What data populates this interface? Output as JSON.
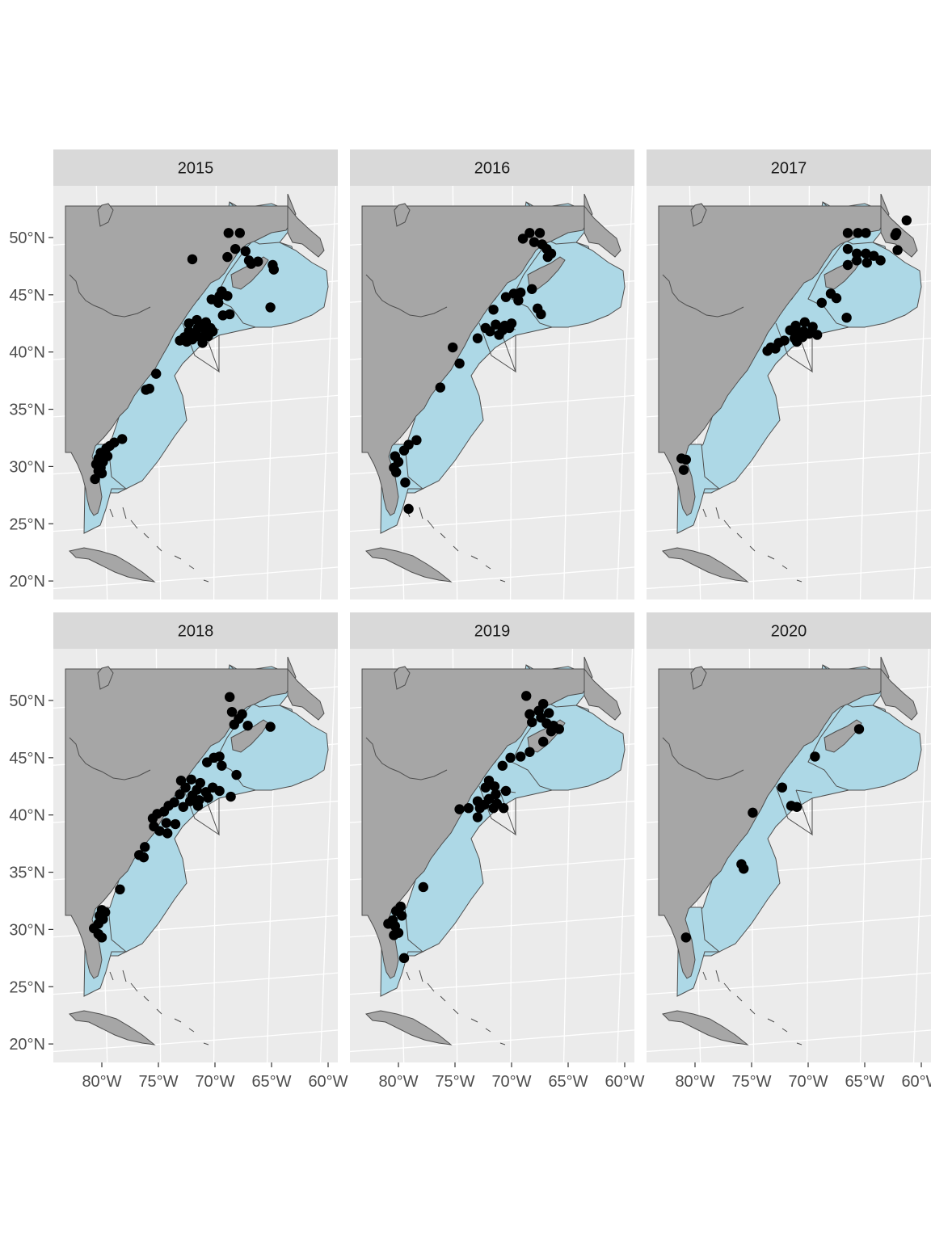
{
  "facets": [
    {
      "label": "2015"
    },
    {
      "label": "2016"
    },
    {
      "label": "2017"
    },
    {
      "label": "2018"
    },
    {
      "label": "2019"
    },
    {
      "label": "2020"
    }
  ],
  "axes": {
    "lat_ticks": [
      {
        "value": 50,
        "label": "50°N"
      },
      {
        "value": 45,
        "label": "45°N"
      },
      {
        "value": 40,
        "label": "40°N"
      },
      {
        "value": 35,
        "label": "35°N"
      },
      {
        "value": 30,
        "label": "30°N"
      },
      {
        "value": 25,
        "label": "25°N"
      },
      {
        "value": 20,
        "label": "20°N"
      }
    ],
    "lon_ticks": [
      {
        "value": -80,
        "label": "80°W"
      },
      {
        "value": -75,
        "label": "75°W"
      },
      {
        "value": -70,
        "label": "70°W"
      },
      {
        "value": -65,
        "label": "65°W"
      },
      {
        "value": -60,
        "label": "60°W"
      }
    ]
  },
  "colors": {
    "panel_bg": "#ebebeb",
    "strip_bg": "#d9d9d9",
    "grid": "#ffffff",
    "land": "#a6a6a6",
    "water": "#add8e6",
    "outline": "#4d4d4d",
    "point": "#000000"
  },
  "chart_data": {
    "type": "scatter",
    "title": "",
    "xlabel": "",
    "ylabel": "",
    "xlim": [
      -84,
      -59
    ],
    "ylim": [
      19,
      54
    ],
    "series": [
      {
        "facet": "2015",
        "points": [
          [
            -72,
            48.1
          ],
          [
            -68.8,
            50.4
          ],
          [
            -67.8,
            50.4
          ],
          [
            -68.2,
            49.0
          ],
          [
            -67.3,
            48.8
          ],
          [
            -68.9,
            48.3
          ],
          [
            -67.0,
            48.0
          ],
          [
            -66.2,
            47.9
          ],
          [
            -64.9,
            47.6
          ],
          [
            -64.8,
            47.2
          ],
          [
            -66.8,
            47.7
          ],
          [
            -69.4,
            45.3
          ],
          [
            -69.6,
            44.9
          ],
          [
            -68.9,
            44.9
          ],
          [
            -70.3,
            44.6
          ],
          [
            -69.7,
            44.3
          ],
          [
            -68.7,
            43.3
          ],
          [
            -69.3,
            43.2
          ],
          [
            -65.1,
            43.9
          ],
          [
            -72.3,
            42.5
          ],
          [
            -71.6,
            42.8
          ],
          [
            -70.8,
            42.6
          ],
          [
            -70.4,
            42.1
          ],
          [
            -71.1,
            42.2
          ],
          [
            -72.3,
            41.8
          ],
          [
            -71.7,
            41.6
          ],
          [
            -72.0,
            41.1
          ],
          [
            -71.3,
            41.3
          ],
          [
            -70.6,
            41.4
          ],
          [
            -70.2,
            41.8
          ],
          [
            -70.8,
            41.8
          ],
          [
            -71.5,
            42.1
          ],
          [
            -72.7,
            41.3
          ],
          [
            -73.1,
            41.0
          ],
          [
            -72.5,
            40.9
          ],
          [
            -71.1,
            40.8
          ],
          [
            -75.2,
            38.1
          ],
          [
            -75.8,
            36.8
          ],
          [
            -76.1,
            36.7
          ],
          [
            -78.2,
            32.4
          ],
          [
            -78.9,
            32.1
          ],
          [
            -79.3,
            31.8
          ],
          [
            -79.6,
            31.6
          ],
          [
            -80.1,
            31.2
          ],
          [
            -79.5,
            30.9
          ],
          [
            -80.3,
            30.7
          ],
          [
            -79.9,
            30.4
          ],
          [
            -80.5,
            30.2
          ],
          [
            -80.1,
            29.9
          ],
          [
            -80.3,
            29.6
          ],
          [
            -80.0,
            29.4
          ],
          [
            -80.6,
            28.9
          ]
        ]
      },
      {
        "facet": "2016",
        "points": [
          [
            -68.4,
            50.4
          ],
          [
            -67.5,
            50.4
          ],
          [
            -69.0,
            49.9
          ],
          [
            -68.0,
            49.6
          ],
          [
            -67.3,
            49.4
          ],
          [
            -66.9,
            49.0
          ],
          [
            -66.5,
            48.6
          ],
          [
            -66.8,
            48.3
          ],
          [
            -69.8,
            45.1
          ],
          [
            -69.2,
            45.2
          ],
          [
            -68.2,
            45.5
          ],
          [
            -70.5,
            44.8
          ],
          [
            -69.4,
            44.5
          ],
          [
            -67.7,
            43.8
          ],
          [
            -67.4,
            43.3
          ],
          [
            -71.6,
            43.7
          ],
          [
            -72.3,
            42.1
          ],
          [
            -71.4,
            42.4
          ],
          [
            -70.6,
            42.3
          ],
          [
            -70.8,
            41.9
          ],
          [
            -71.9,
            41.8
          ],
          [
            -70.2,
            42.1
          ],
          [
            -71.1,
            41.5
          ],
          [
            -70.0,
            42.5
          ],
          [
            -73.0,
            41.2
          ],
          [
            -75.2,
            40.4
          ],
          [
            -74.6,
            39.0
          ],
          [
            -76.3,
            36.9
          ],
          [
            -78.4,
            32.3
          ],
          [
            -79.1,
            31.9
          ],
          [
            -79.5,
            31.4
          ],
          [
            -80.3,
            30.9
          ],
          [
            -80.0,
            30.4
          ],
          [
            -80.4,
            29.9
          ],
          [
            -80.2,
            29.5
          ],
          [
            -79.4,
            28.6
          ],
          [
            -79.1,
            26.3
          ]
        ]
      },
      {
        "facet": "2017",
        "points": [
          [
            -61.3,
            51.5
          ],
          [
            -62.2,
            50.4
          ],
          [
            -62.3,
            50.2
          ],
          [
            -66.5,
            50.4
          ],
          [
            -65.6,
            50.4
          ],
          [
            -64.9,
            50.4
          ],
          [
            -66.5,
            49.0
          ],
          [
            -65.7,
            48.6
          ],
          [
            -64.9,
            48.6
          ],
          [
            -64.2,
            48.4
          ],
          [
            -63.6,
            48.0
          ],
          [
            -65.7,
            48.0
          ],
          [
            -66.5,
            47.6
          ],
          [
            -64.8,
            47.8
          ],
          [
            -62.1,
            48.9
          ],
          [
            -68.0,
            45.1
          ],
          [
            -67.5,
            44.7
          ],
          [
            -68.8,
            44.3
          ],
          [
            -66.6,
            43.0
          ],
          [
            -70.3,
            42.6
          ],
          [
            -71.1,
            42.3
          ],
          [
            -69.6,
            42.2
          ],
          [
            -70.4,
            41.8
          ],
          [
            -69.9,
            41.6
          ],
          [
            -70.9,
            41.7
          ],
          [
            -71.6,
            41.9
          ],
          [
            -71.2,
            41.2
          ],
          [
            -70.5,
            41.3
          ],
          [
            -72.1,
            41.0
          ],
          [
            -72.6,
            40.8
          ],
          [
            -73.3,
            40.4
          ],
          [
            -73.6,
            40.1
          ],
          [
            -72.9,
            40.3
          ],
          [
            -71.0,
            40.9
          ],
          [
            -69.2,
            41.5
          ],
          [
            -81.2,
            30.7
          ],
          [
            -80.8,
            30.6
          ],
          [
            -81.0,
            29.7
          ]
        ]
      },
      {
        "facet": "2018",
        "points": [
          [
            -68.7,
            50.3
          ],
          [
            -68.5,
            49.0
          ],
          [
            -67.6,
            48.8
          ],
          [
            -67.9,
            48.4
          ],
          [
            -68.3,
            47.9
          ],
          [
            -67.1,
            47.8
          ],
          [
            -65.1,
            47.7
          ],
          [
            -70.1,
            45.0
          ],
          [
            -69.6,
            45.1
          ],
          [
            -70.7,
            44.6
          ],
          [
            -69.4,
            44.3
          ],
          [
            -68.1,
            43.5
          ],
          [
            -70.2,
            42.4
          ],
          [
            -69.6,
            42.1
          ],
          [
            -68.6,
            41.6
          ],
          [
            -73.0,
            43.0
          ],
          [
            -72.1,
            43.1
          ],
          [
            -71.3,
            42.8
          ],
          [
            -72.6,
            42.4
          ],
          [
            -71.6,
            42.2
          ],
          [
            -70.8,
            42.0
          ],
          [
            -72.0,
            41.7
          ],
          [
            -73.1,
            41.8
          ],
          [
            -72.2,
            41.2
          ],
          [
            -71.4,
            41.3
          ],
          [
            -70.6,
            41.5
          ],
          [
            -73.6,
            41.1
          ],
          [
            -74.1,
            40.8
          ],
          [
            -72.8,
            40.7
          ],
          [
            -71.5,
            40.8
          ],
          [
            -74.5,
            40.3
          ],
          [
            -75.1,
            40.1
          ],
          [
            -75.5,
            39.7
          ],
          [
            -74.3,
            39.3
          ],
          [
            -75.4,
            39.0
          ],
          [
            -73.5,
            39.2
          ],
          [
            -74.9,
            38.6
          ],
          [
            -74.2,
            38.4
          ],
          [
            -76.2,
            37.2
          ],
          [
            -76.7,
            36.5
          ],
          [
            -76.3,
            36.3
          ],
          [
            -78.4,
            33.5
          ],
          [
            -80.0,
            31.7
          ],
          [
            -79.7,
            31.5
          ],
          [
            -80.2,
            31.2
          ],
          [
            -79.9,
            30.9
          ],
          [
            -80.3,
            30.5
          ],
          [
            -80.7,
            30.1
          ],
          [
            -80.3,
            29.6
          ],
          [
            -80.0,
            29.3
          ]
        ]
      },
      {
        "facet": "2019",
        "points": [
          [
            -68.7,
            50.4
          ],
          [
            -67.2,
            49.7
          ],
          [
            -67.6,
            49.1
          ],
          [
            -68.4,
            48.8
          ],
          [
            -66.7,
            48.9
          ],
          [
            -67.4,
            48.5
          ],
          [
            -68.2,
            48.1
          ],
          [
            -66.9,
            48.0
          ],
          [
            -66.3,
            47.8
          ],
          [
            -65.8,
            47.5
          ],
          [
            -66.5,
            47.3
          ],
          [
            -67.2,
            46.4
          ],
          [
            -70.1,
            45.0
          ],
          [
            -69.2,
            45.1
          ],
          [
            -68.4,
            45.5
          ],
          [
            -70.8,
            44.3
          ],
          [
            -72.0,
            43.0
          ],
          [
            -71.5,
            42.5
          ],
          [
            -72.3,
            42.4
          ],
          [
            -70.5,
            42.1
          ],
          [
            -71.4,
            41.8
          ],
          [
            -72.0,
            41.4
          ],
          [
            -73.0,
            41.2
          ],
          [
            -72.4,
            40.9
          ],
          [
            -71.3,
            41.0
          ],
          [
            -72.8,
            40.6
          ],
          [
            -73.8,
            40.6
          ],
          [
            -74.6,
            40.5
          ],
          [
            -73.0,
            39.8
          ],
          [
            -71.6,
            40.6
          ],
          [
            -70.7,
            40.6
          ],
          [
            -77.8,
            33.7
          ],
          [
            -79.8,
            32.0
          ],
          [
            -80.2,
            31.6
          ],
          [
            -79.7,
            31.2
          ],
          [
            -80.5,
            30.8
          ],
          [
            -80.3,
            30.3
          ],
          [
            -80.9,
            30.5
          ],
          [
            -80.0,
            29.7
          ],
          [
            -80.4,
            29.5
          ],
          [
            -79.5,
            27.5
          ]
        ]
      },
      {
        "facet": "2020",
        "points": [
          [
            -65.5,
            47.5
          ],
          [
            -69.4,
            45.1
          ],
          [
            -72.3,
            42.4
          ],
          [
            -71.5,
            40.8
          ],
          [
            -71.0,
            40.7
          ],
          [
            -74.9,
            40.2
          ],
          [
            -75.9,
            35.7
          ],
          [
            -75.7,
            35.3
          ],
          [
            -80.8,
            29.3
          ]
        ]
      }
    ]
  }
}
